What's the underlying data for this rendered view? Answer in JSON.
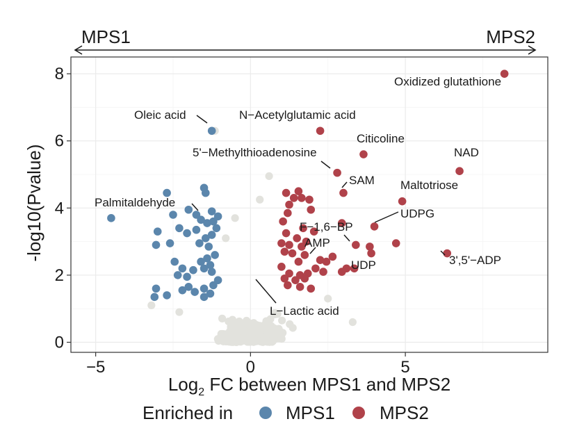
{
  "chart_data": {
    "type": "scatter",
    "title": "",
    "xlabel_prefix": "Log",
    "xlabel_subscript": "2",
    "xlabel_suffix": " FC between MPS1 and MPS2",
    "ylabel": "-log10(Pvalue)",
    "xlim": [
      -5.8,
      9.6
    ],
    "ylim": [
      -0.3,
      8.5
    ],
    "x_ticks": [
      -5,
      0,
      5
    ],
    "x_tick_labels": [
      "−5",
      "0",
      "5"
    ],
    "y_ticks": [
      0,
      2,
      4,
      6,
      8
    ],
    "y_tick_labels": [
      "0",
      "2",
      "4",
      "6",
      "8"
    ],
    "direction_left": "MPS1",
    "direction_right": "MPS2",
    "legend": {
      "title": "Enriched in",
      "entries": [
        {
          "label": "MPS1",
          "color": "#5b86ac"
        },
        {
          "label": "MPS2",
          "color": "#b0424a"
        }
      ]
    },
    "colors": {
      "ns": "#e2e2dd",
      "MPS1": "#5b86ac",
      "MPS2": "#b0424a"
    },
    "series": [
      {
        "name": "MPS1",
        "points": [
          [
            -4.5,
            3.7
          ],
          [
            -1.25,
            6.3
          ],
          [
            -2.7,
            4.45
          ],
          [
            -2.5,
            3.8
          ],
          [
            -1.5,
            4.6
          ],
          [
            -1.45,
            4.45
          ],
          [
            -2.0,
            3.95
          ],
          [
            -1.75,
            3.8
          ],
          [
            -3.0,
            3.3
          ],
          [
            -3.05,
            2.9
          ],
          [
            -2.6,
            2.95
          ],
          [
            -2.3,
            3.4
          ],
          [
            -2.05,
            3.25
          ],
          [
            -1.6,
            3.65
          ],
          [
            -1.4,
            3.55
          ],
          [
            -1.2,
            3.6
          ],
          [
            -1.1,
            3.4
          ],
          [
            -1.25,
            3.2
          ],
          [
            -1.45,
            3.1
          ],
          [
            -1.65,
            2.95
          ],
          [
            -1.35,
            2.85
          ],
          [
            -1.15,
            2.6
          ],
          [
            -1.4,
            2.5
          ],
          [
            -1.6,
            2.4
          ],
          [
            -1.3,
            2.3
          ],
          [
            -1.5,
            2.2
          ],
          [
            -1.25,
            2.1
          ],
          [
            -2.45,
            2.4
          ],
          [
            -2.2,
            2.2
          ],
          [
            -2.35,
            2.0
          ],
          [
            -2.05,
            1.95
          ],
          [
            -1.85,
            2.15
          ],
          [
            -2.0,
            1.65
          ],
          [
            -2.2,
            1.55
          ],
          [
            -1.8,
            1.5
          ],
          [
            -1.5,
            1.6
          ],
          [
            -1.3,
            1.45
          ],
          [
            -1.5,
            1.35
          ],
          [
            -1.2,
            1.7
          ],
          [
            -1.05,
            1.85
          ],
          [
            -3.05,
            1.6
          ],
          [
            -3.1,
            1.35
          ],
          [
            -2.7,
            1.4
          ],
          [
            -1.25,
            3.9
          ],
          [
            -1.05,
            3.75
          ],
          [
            -1.75,
            3.35
          ]
        ]
      },
      {
        "name": "MPS2",
        "points": [
          [
            8.2,
            8.0
          ],
          [
            2.25,
            6.3
          ],
          [
            3.65,
            5.6
          ],
          [
            6.75,
            5.1
          ],
          [
            2.8,
            5.05
          ],
          [
            3.0,
            4.45
          ],
          [
            4.9,
            4.2
          ],
          [
            4.0,
            3.45
          ],
          [
            2.95,
            3.55
          ],
          [
            1.55,
            4.5
          ],
          [
            1.15,
            4.45
          ],
          [
            1.4,
            4.3
          ],
          [
            1.65,
            4.3
          ],
          [
            1.9,
            4.25
          ],
          [
            1.25,
            4.1
          ],
          [
            1.95,
            3.95
          ],
          [
            1.2,
            3.85
          ],
          [
            1.05,
            3.6
          ],
          [
            1.7,
            3.4
          ],
          [
            2.05,
            3.3
          ],
          [
            1.15,
            3.25
          ],
          [
            1.5,
            3.1
          ],
          [
            1.8,
            3.0
          ],
          [
            1.25,
            2.9
          ],
          [
            1.0,
            2.95
          ],
          [
            1.65,
            2.85
          ],
          [
            3.4,
            2.9
          ],
          [
            3.85,
            2.85
          ],
          [
            4.7,
            2.95
          ],
          [
            3.9,
            2.65
          ],
          [
            6.35,
            2.65
          ],
          [
            1.35,
            2.65
          ],
          [
            1.1,
            2.7
          ],
          [
            1.75,
            2.6
          ],
          [
            2.25,
            2.45
          ],
          [
            2.45,
            2.4
          ],
          [
            2.65,
            2.55
          ],
          [
            1.55,
            2.4
          ],
          [
            2.1,
            2.2
          ],
          [
            2.35,
            2.1
          ],
          [
            3.1,
            2.2
          ],
          [
            2.95,
            2.1
          ],
          [
            3.35,
            2.2
          ],
          [
            1.0,
            2.25
          ],
          [
            1.25,
            2.05
          ],
          [
            1.6,
            2.0
          ],
          [
            1.85,
            2.05
          ],
          [
            1.1,
            1.9
          ],
          [
            1.45,
            1.85
          ],
          [
            1.75,
            1.9
          ],
          [
            1.2,
            1.7
          ],
          [
            1.6,
            1.65
          ],
          [
            1.95,
            1.6
          ]
        ]
      }
    ]
  },
  "annotations": [
    {
      "label": "Oxidized glutathione"
    },
    {
      "label": "Oleic acid"
    },
    {
      "label": "N−Acetylglutamic acid"
    },
    {
      "label": "Citicoline"
    },
    {
      "label": "NAD"
    },
    {
      "label": "5'−Methylthioadenosine"
    },
    {
      "label": "SAM"
    },
    {
      "label": "Maltotriose"
    },
    {
      "label": "Palmitaldehyde"
    },
    {
      "label": "UDPG"
    },
    {
      "label": "F−1,6−BP"
    },
    {
      "label": "AMP"
    },
    {
      "label": "UDP"
    },
    {
      "label": "3',5'−ADP"
    },
    {
      "label": "L−Lactic acid"
    }
  ]
}
